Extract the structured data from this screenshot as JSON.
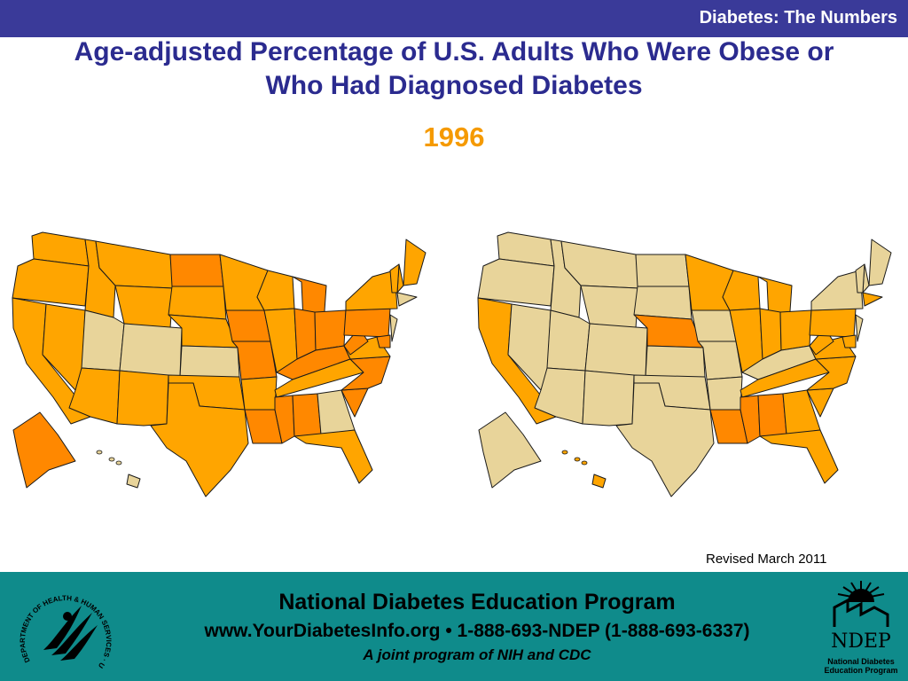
{
  "header": {
    "label": "Diabetes: The Numbers"
  },
  "title": {
    "line1": "Age-adjusted Percentage of U.S. Adults Who Were Obese or",
    "line2": "Who Had Diagnosed Diabetes"
  },
  "year": "1996",
  "revised": "Revised March 2011",
  "footer": {
    "program": "National Diabetes Education Program",
    "contact": "www.YourDiabetesInfo.org • 1-888-693-NDEP (1-888-693-6337)",
    "joint": "A joint program of NIH and CDC",
    "seal_text": "DEPARTMENT OF HEALTH & HUMAN SERVICES · USA",
    "ndep_logo": "NDEP",
    "ndep_sub1": "National Diabetes",
    "ndep_sub2": "Education Program"
  },
  "colors": {
    "light_tan": "#e8d49a",
    "orange": "#ffa500",
    "dark_orange": "#ff8800",
    "border": "#1a1a1a"
  },
  "maps": [
    {
      "measure": "obesity",
      "states": {
        "WA": "orange",
        "OR": "orange",
        "CA": "orange",
        "NV": "orange",
        "ID": "orange",
        "MT": "orange",
        "WY": "orange",
        "UT": "light_tan",
        "CO": "light_tan",
        "AZ": "orange",
        "NM": "orange",
        "ND": "dark_orange",
        "SD": "orange",
        "NE": "orange",
        "KS": "light_tan",
        "OK": "orange",
        "TX": "orange",
        "MN": "orange",
        "IA": "dark_orange",
        "MO": "dark_orange",
        "AR": "orange",
        "LA": "dark_orange",
        "WI": "orange",
        "IL": "orange",
        "MI": "dark_orange",
        "IN": "dark_orange",
        "OH": "dark_orange",
        "KY": "dark_orange",
        "TN": "orange",
        "MS": "dark_orange",
        "AL": "dark_orange",
        "GA": "light_tan",
        "FL": "orange",
        "SC": "dark_orange",
        "NC": "dark_orange",
        "VA": "orange",
        "WV": "dark_orange",
        "PA": "dark_orange",
        "NY": "orange",
        "ME": "orange",
        "NH": "orange",
        "VT": "orange",
        "MA": "light_tan",
        "NJ": "light_tan",
        "MD": "dark_orange",
        "AK": "dark_orange",
        "HI": "light_tan"
      }
    },
    {
      "measure": "diabetes",
      "states": {
        "WA": "light_tan",
        "OR": "light_tan",
        "CA": "orange",
        "NV": "light_tan",
        "ID": "light_tan",
        "MT": "light_tan",
        "WY": "light_tan",
        "UT": "light_tan",
        "CO": "light_tan",
        "AZ": "light_tan",
        "NM": "light_tan",
        "ND": "light_tan",
        "SD": "light_tan",
        "NE": "dark_orange",
        "KS": "light_tan",
        "OK": "light_tan",
        "TX": "light_tan",
        "MN": "orange",
        "IA": "light_tan",
        "MO": "light_tan",
        "AR": "light_tan",
        "LA": "dark_orange",
        "WI": "orange",
        "IL": "orange",
        "MI": "orange",
        "IN": "orange",
        "OH": "orange",
        "KY": "light_tan",
        "TN": "orange",
        "MS": "dark_orange",
        "AL": "dark_orange",
        "GA": "orange",
        "FL": "orange",
        "SC": "orange",
        "NC": "orange",
        "VA": "orange",
        "WV": "orange",
        "PA": "orange",
        "NY": "light_tan",
        "ME": "light_tan",
        "NH": "light_tan",
        "VT": "light_tan",
        "MA": "orange",
        "NJ": "light_tan",
        "MD": "orange",
        "AK": "light_tan",
        "HI": "orange"
      }
    }
  ]
}
